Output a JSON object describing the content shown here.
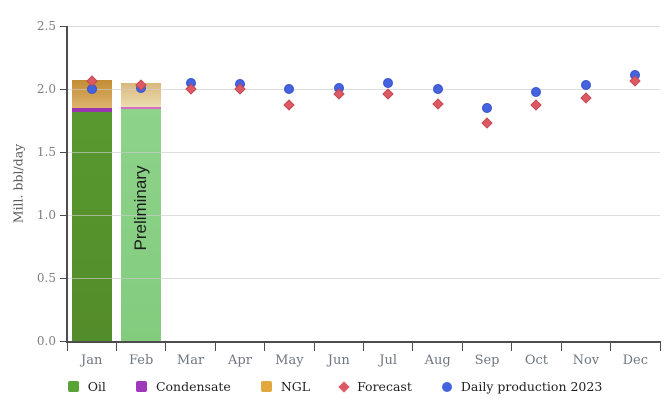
{
  "y_axis": {
    "label": "Mill. bbl/day",
    "tick_labels": [
      "0.0",
      "0.5",
      "1.0",
      "1.5",
      "2.0",
      "2.5"
    ]
  },
  "chart_data": {
    "type": "combo-stacked-bar-scatter",
    "title": "",
    "xlabel": "",
    "ylabel": "Mill. bbl/day",
    "ylim": [
      0,
      2.5
    ],
    "yticks": [
      0,
      0.5,
      1.0,
      1.5,
      2.0,
      2.5
    ],
    "grid": true,
    "legend_position": "bottom",
    "categories": [
      "Jan",
      "Feb",
      "Mar",
      "Apr",
      "May",
      "Jun",
      "Jul",
      "Aug",
      "Sep",
      "Oct",
      "Nov",
      "Dec"
    ],
    "series": [
      {
        "name": "Oil",
        "type": "bar",
        "color": "#5aa337",
        "values": [
          1.82,
          1.84,
          null,
          null,
          null,
          null,
          null,
          null,
          null,
          null,
          null,
          null
        ]
      },
      {
        "name": "Condensate",
        "type": "bar",
        "color": "#a038bb",
        "values": [
          0.03,
          0.02,
          null,
          null,
          null,
          null,
          null,
          null,
          null,
          null,
          null,
          null
        ]
      },
      {
        "name": "NGL",
        "type": "bar",
        "color": "#e2a83e",
        "values": [
          0.22,
          0.19,
          null,
          null,
          null,
          null,
          null,
          null,
          null,
          null,
          null,
          null
        ]
      },
      {
        "name": "Forecast",
        "type": "scatter",
        "marker": "diamond",
        "color": "#dd5a64",
        "values": [
          2.06,
          2.03,
          2.0,
          2.0,
          1.87,
          1.96,
          1.96,
          1.88,
          1.73,
          1.87,
          1.93,
          2.06
        ]
      },
      {
        "name": "Daily production 2023",
        "type": "scatter",
        "marker": "circle",
        "color": "#4463e0",
        "values": [
          2.0,
          2.01,
          2.05,
          2.04,
          2.0,
          2.01,
          2.05,
          2.0,
          1.85,
          1.98,
          2.03,
          2.11
        ]
      }
    ],
    "bar_styles": {
      "normal": {
        "Oil": [
          "#58992f",
          "#538c2a"
        ],
        "Condensate": [
          "#9a35b0",
          "#9a35b0"
        ],
        "NGL": [
          "#c28c35",
          "#dcb36e"
        ]
      },
      "preliminary": {
        "Oil": [
          "#8dd38a",
          "#83cc7e"
        ],
        "Condensate": [
          "#da6cc9",
          "#da6cc9"
        ],
        "NGL": [
          "#d8b77c",
          "#ecdcb0"
        ]
      }
    },
    "preliminary_months": [
      "Feb"
    ],
    "annotation": {
      "text": "Preliminary",
      "month": "Feb"
    }
  },
  "legend": {
    "items": [
      {
        "label": "Oil",
        "color": "#5aa337",
        "shape": "square"
      },
      {
        "label": "Condensate",
        "color": "#a038bb",
        "shape": "square"
      },
      {
        "label": "NGL",
        "color": "#e2a83e",
        "shape": "square"
      },
      {
        "label": "Forecast",
        "color": "#dd5a64",
        "shape": "diamond"
      },
      {
        "label": "Daily production 2023",
        "color": "#4463e0",
        "shape": "circle"
      }
    ]
  }
}
